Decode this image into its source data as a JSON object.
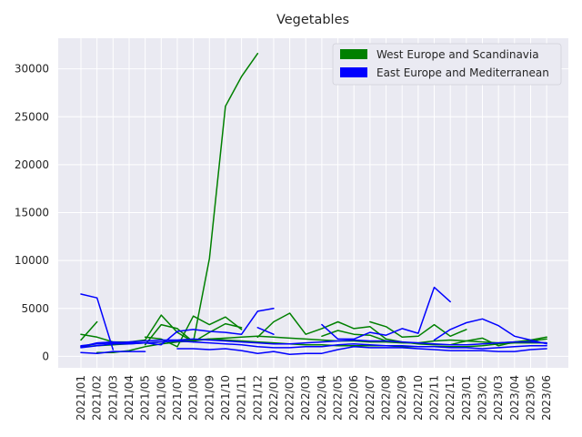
{
  "chart_data": {
    "type": "line",
    "title": "Vegetables",
    "xlabel": "",
    "ylabel": "",
    "ylim": [
      -1200,
      33200
    ],
    "yticks": [
      0,
      5000,
      10000,
      15000,
      20000,
      25000,
      30000
    ],
    "ytick_labels": [
      "0",
      "5000",
      "10000",
      "15000",
      "20000",
      "25000",
      "30000"
    ],
    "grid": true,
    "legend_position": "top-right",
    "categories": [
      "2021/01",
      "2021/02",
      "2021/03",
      "2021/04",
      "2021/05",
      "2021/06",
      "2021/07",
      "2021/08",
      "2021/09",
      "2021/10",
      "2021/11",
      "2021/12",
      "2022/01",
      "2022/02",
      "2022/03",
      "2022/04",
      "2022/05",
      "2022/06",
      "2022/07",
      "2022/08",
      "2022/09",
      "2022/10",
      "2022/11",
      "2022/12",
      "2023/01",
      "2023/02",
      "2023/03",
      "2023/04",
      "2023/05",
      "2023/06"
    ],
    "legend": [
      {
        "label": "West Europe and Scandinavia",
        "color": "#008000"
      },
      {
        "label": "East Europe and Mediterranean",
        "color": "#0000ff"
      }
    ],
    "series": [
      {
        "group": "west",
        "color": "#008000",
        "values": [
          1700,
          3600,
          null,
          null,
          2000,
          1800,
          1000,
          4200,
          3300,
          4100,
          2800,
          null,
          null,
          null,
          null,
          null,
          null,
          null,
          3600,
          3100,
          2000,
          2100,
          3300,
          2100,
          2800,
          null,
          null,
          null,
          null,
          null
        ]
      },
      {
        "group": "west",
        "color": "#008000",
        "values": [
          2300,
          2000,
          1500,
          1500,
          1700,
          4300,
          2500,
          1500,
          2500,
          3400,
          3000,
          null,
          null,
          null,
          null,
          2100,
          2700,
          2300,
          2200,
          1600,
          null,
          null,
          null,
          null,
          null,
          null,
          null,
          null,
          null,
          null
        ]
      },
      {
        "group": "west",
        "color": "#008000",
        "values": [
          null,
          null,
          null,
          null,
          1200,
          3300,
          2900,
          1500,
          10200,
          26100,
          29200,
          31600,
          null,
          null,
          null,
          null,
          null,
          null,
          null,
          null,
          null,
          null,
          null,
          null,
          null,
          null,
          null,
          null,
          null,
          null
        ]
      },
      {
        "group": "west",
        "color": "#008000",
        "values": [
          null,
          null,
          null,
          null,
          null,
          null,
          null,
          null,
          null,
          null,
          null,
          2000,
          3600,
          4500,
          2300,
          2900,
          3600,
          2900,
          3100,
          1800,
          1500,
          1300,
          1200,
          1200,
          1600,
          1900,
          1100,
          1500,
          1700,
          2000
        ]
      },
      {
        "group": "west",
        "color": "#008000",
        "values": [
          1000,
          1100,
          1200,
          1300,
          1400,
          1500,
          1600,
          1700,
          1800,
          1900,
          2000,
          2100,
          2000,
          1900,
          1800,
          1700,
          1600,
          1600,
          1500,
          1500,
          1400,
          1400,
          1600,
          1700,
          1600,
          1500,
          1400,
          1500,
          1600,
          1800
        ]
      },
      {
        "group": "west",
        "color": "#008000",
        "values": [
          null,
          400,
          400,
          600,
          1000,
          1300,
          1500,
          1600,
          1800,
          1700,
          1600,
          1500,
          1400,
          1300,
          1200,
          1200,
          1100,
          1100,
          1100,
          1100,
          1000,
          1000,
          1000,
          1000,
          1000,
          1100,
          1300,
          1400,
          1400,
          1400
        ]
      },
      {
        "group": "east",
        "color": "#0000ff",
        "values": [
          6500,
          6100,
          700,
          null,
          null,
          null,
          null,
          null,
          null,
          null,
          null,
          null,
          null,
          null,
          null,
          null,
          null,
          null,
          null,
          null,
          null,
          null,
          null,
          null,
          null,
          null,
          null,
          null,
          null,
          null
        ]
      },
      {
        "group": "east",
        "color": "#0000ff",
        "values": [
          400,
          300,
          500,
          500,
          500,
          null,
          null,
          null,
          null,
          null,
          null,
          null,
          null,
          null,
          null,
          null,
          null,
          null,
          null,
          null,
          null,
          null,
          null,
          null,
          null,
          null,
          null,
          null,
          null,
          null
        ]
      },
      {
        "group": "east",
        "color": "#0000ff",
        "values": [
          1000,
          1400,
          1500,
          1400,
          1400,
          1200,
          2600,
          2800,
          2600,
          2500,
          2300,
          4700,
          5000,
          null,
          null,
          null,
          null,
          null,
          null,
          null,
          null,
          null,
          null,
          null,
          null,
          null,
          null,
          null,
          null,
          null
        ]
      },
      {
        "group": "east",
        "color": "#0000ff",
        "values": [
          null,
          null,
          null,
          null,
          null,
          null,
          800,
          800,
          700,
          800,
          600,
          300,
          500,
          200,
          300,
          300,
          700,
          1000,
          900,
          900,
          900,
          800,
          700,
          600,
          600,
          600,
          500,
          500,
          700,
          800
        ]
      },
      {
        "group": "east",
        "color": "#0000ff",
        "values": [
          1100,
          1300,
          1400,
          1500,
          1600,
          1700,
          1700,
          1800,
          1700,
          1600,
          1500,
          1400,
          1300,
          1300,
          1400,
          1500,
          1600,
          1700,
          1600,
          1600,
          1500,
          1400,
          1300,
          1200,
          1200,
          1300,
          1400,
          1500,
          1500,
          1400
        ]
      },
      {
        "group": "east",
        "color": "#0000ff",
        "values": [
          null,
          null,
          null,
          null,
          null,
          null,
          null,
          null,
          null,
          null,
          null,
          3000,
          2300,
          null,
          null,
          3300,
          1800,
          1800,
          2500,
          2200,
          2900,
          2400,
          7200,
          5700,
          null,
          null,
          null,
          null,
          null,
          null
        ]
      },
      {
        "group": "east",
        "color": "#0000ff",
        "values": [
          null,
          null,
          null,
          null,
          null,
          null,
          null,
          null,
          null,
          null,
          null,
          null,
          null,
          null,
          null,
          null,
          null,
          null,
          null,
          null,
          null,
          null,
          1700,
          2800,
          3500,
          3900,
          3200,
          2100,
          1700,
          1300
        ]
      },
      {
        "group": "east",
        "color": "#0000ff",
        "values": [
          900,
          1100,
          1300,
          1300,
          1400,
          1500,
          1600,
          1500,
          1400,
          1300,
          1200,
          1000,
          900,
          900,
          1000,
          1000,
          1200,
          1300,
          1200,
          1100,
          1100,
          1000,
          1000,
          900,
          900,
          800,
          900,
          1000,
          1100,
          1100
        ]
      }
    ]
  }
}
